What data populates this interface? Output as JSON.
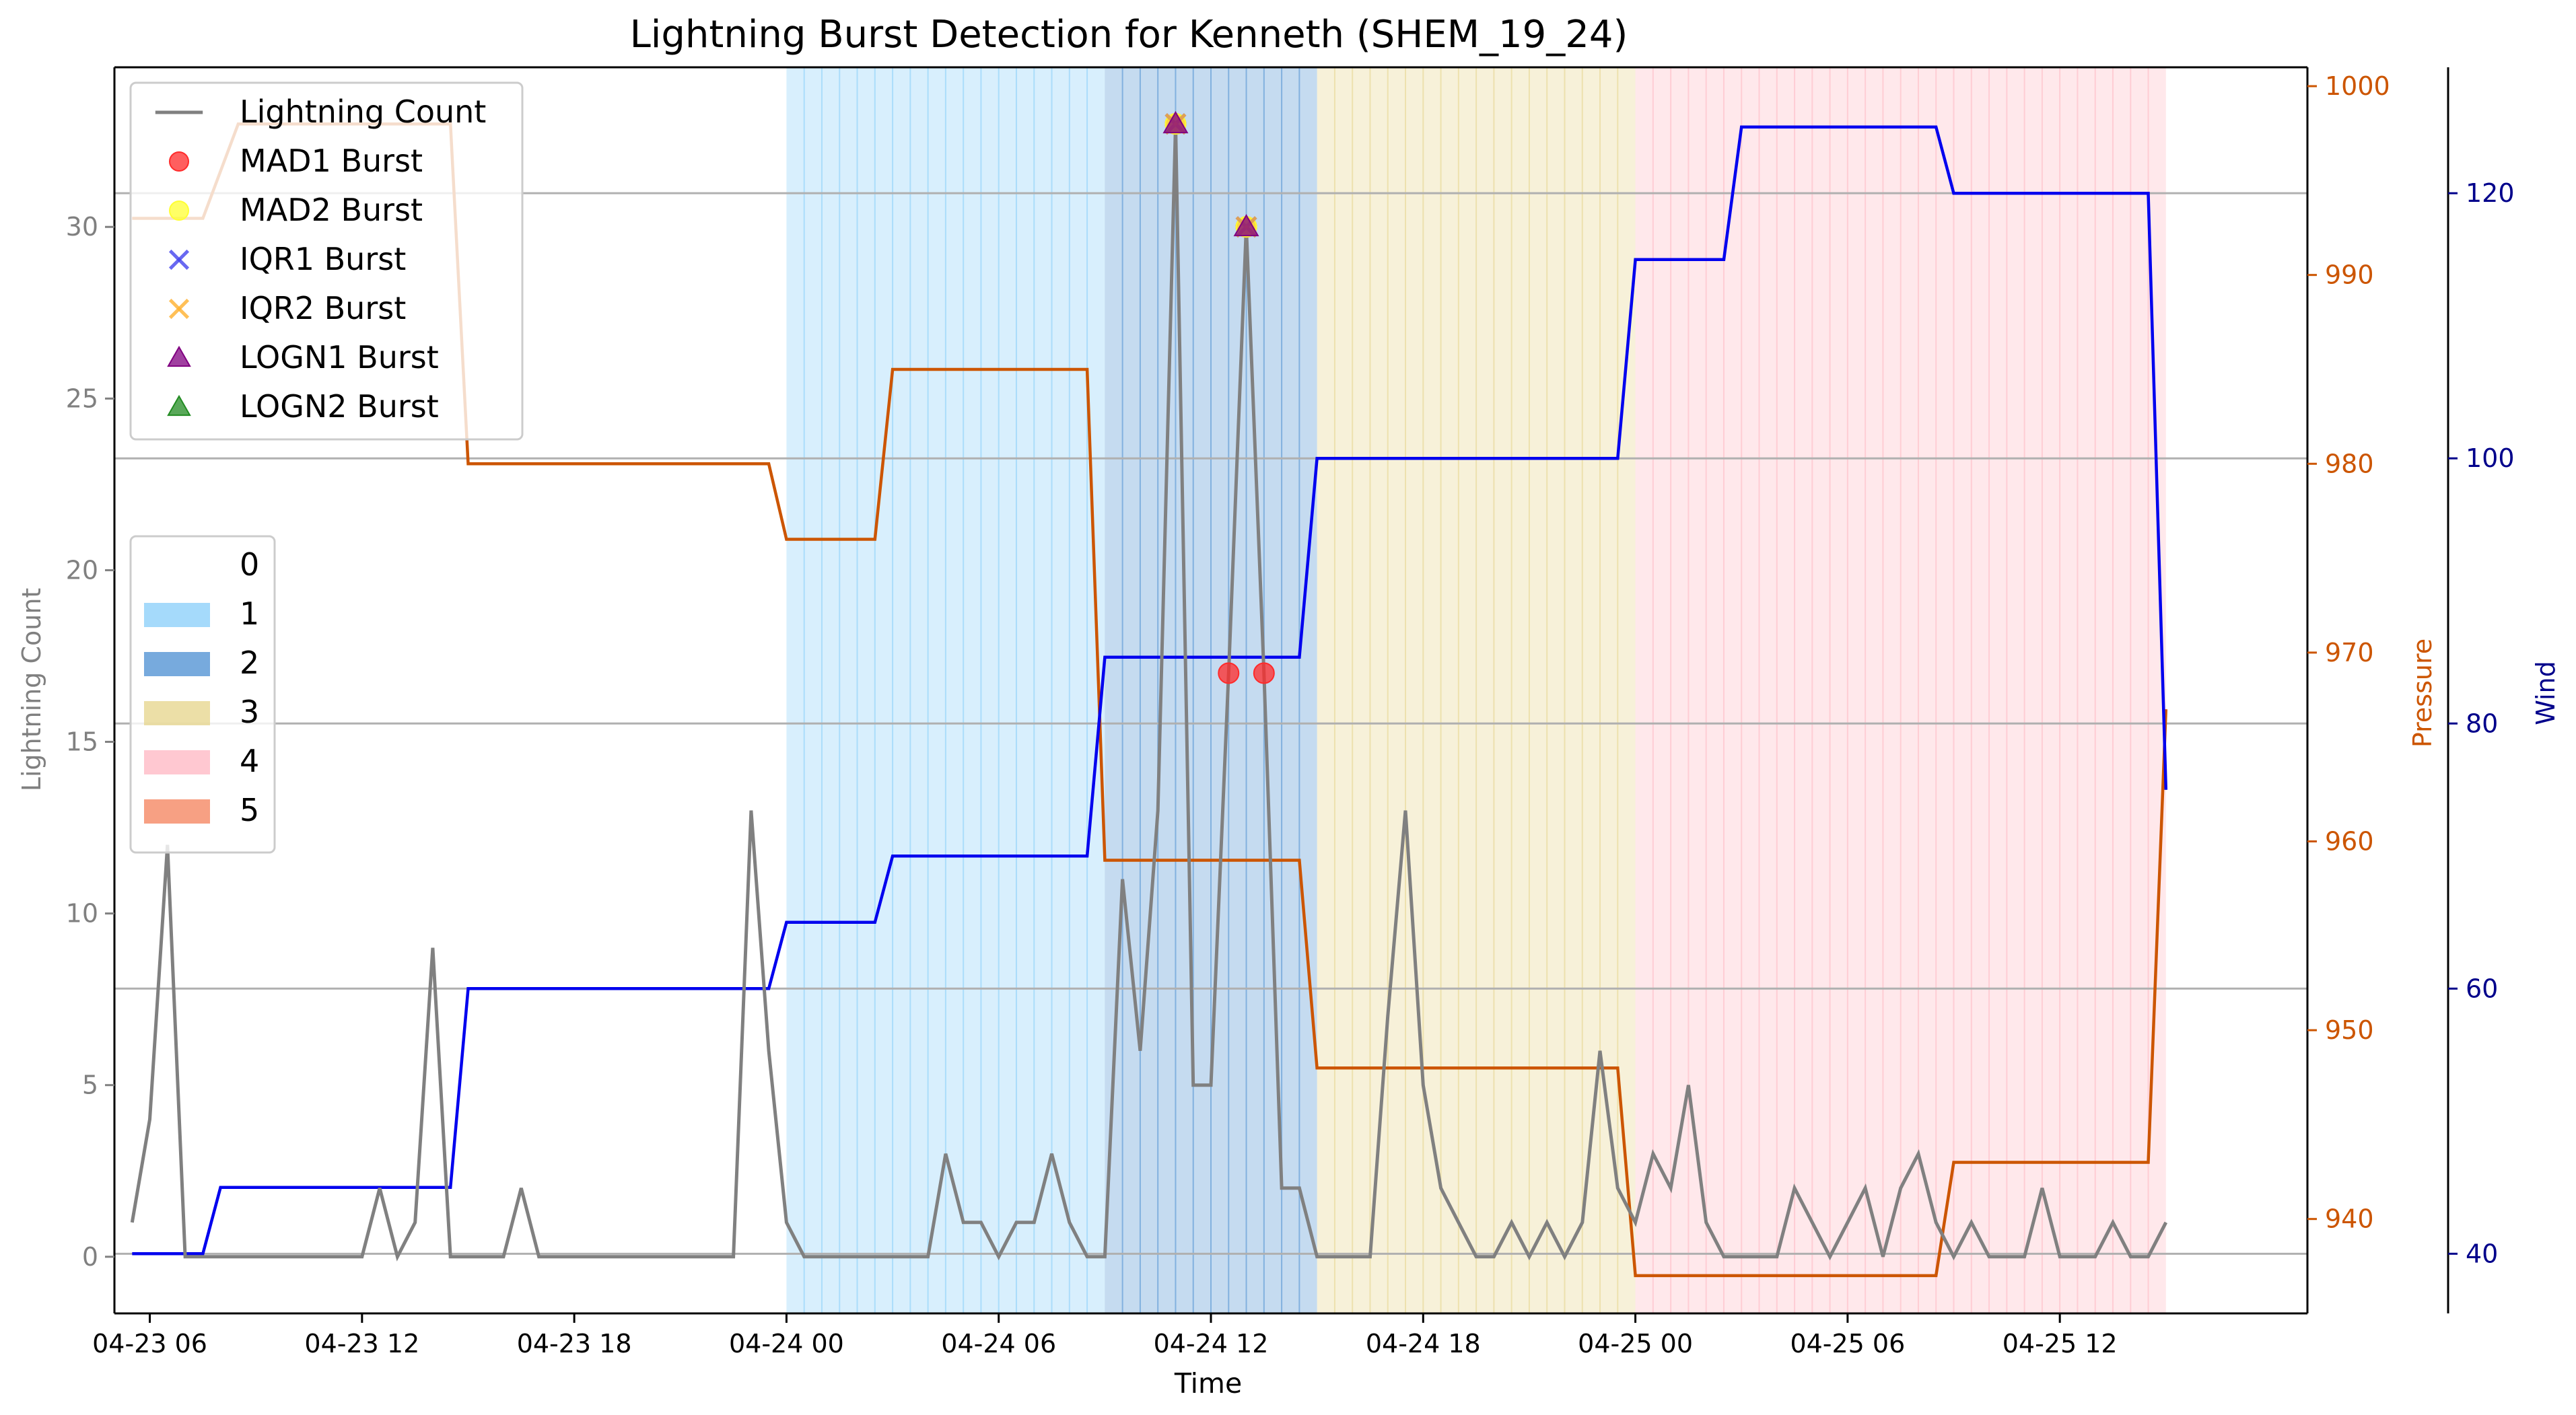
{
  "chart_data": {
    "type": "line",
    "title": "Lightning Burst Detection for Kenneth (SHEM_19_24)",
    "xlabel": "Time",
    "ylabel_left": "Lightning Count",
    "ylabel_right1": "Pressure",
    "ylabel_right2": "Wind",
    "x_range": [
      "2019-04-23 05:00",
      "2019-04-25 19:00"
    ],
    "x_tick_labels": [
      "04-23 06",
      "04-23 12",
      "04-23 18",
      "04-24 00",
      "04-24 06",
      "04-24 12",
      "04-24 18",
      "04-25 00",
      "04-25 06",
      "04-25 12"
    ],
    "y_left": {
      "range": [
        -1.65,
        34.65
      ],
      "ticks": [
        0,
        5,
        10,
        15,
        20,
        25,
        30
      ]
    },
    "y_pressure": {
      "range": [
        935,
        1001
      ],
      "ticks": [
        940,
        950,
        960,
        970,
        980,
        990,
        1000
      ]
    },
    "y_wind": {
      "range": [
        35.5,
        129.5
      ],
      "ticks": [
        40,
        60,
        80,
        100,
        120
      ]
    },
    "grid": "horizontal lines at wind ticks",
    "colors": {
      "lightning": "#808080",
      "pressure": "#cc5500",
      "wind": "#0000ee",
      "wind_axis": "#00008b",
      "cat1": "#87cefa",
      "cat2": "#4a8ed1",
      "cat3": "#e5d48a",
      "cat4": "#ffb6c1",
      "cat5": "#f4805a"
    },
    "category_bands": [
      {
        "category": 1,
        "start": "2019-04-24 00:00",
        "end": "2019-04-24 09:00"
      },
      {
        "category": 2,
        "start": "2019-04-24 09:00",
        "end": "2019-04-24 15:00"
      },
      {
        "category": 3,
        "start": "2019-04-24 15:00",
        "end": "2019-04-25 00:00"
      },
      {
        "category": 4,
        "start": "2019-04-25 00:00",
        "end": "2019-04-25 15:00"
      }
    ],
    "lightning_count": [
      [
        "2019-04-23 05:30",
        1
      ],
      [
        "2019-04-23 06:00",
        4
      ],
      [
        "2019-04-23 06:30",
        12
      ],
      [
        "2019-04-23 07:00",
        0
      ],
      [
        "2019-04-23 12:00",
        0
      ],
      [
        "2019-04-23 12:30",
        2
      ],
      [
        "2019-04-23 13:00",
        0
      ],
      [
        "2019-04-23 13:30",
        1
      ],
      [
        "2019-04-23 14:00",
        9
      ],
      [
        "2019-04-23 14:30",
        0
      ],
      [
        "2019-04-23 16:00",
        0
      ],
      [
        "2019-04-23 16:30",
        2
      ],
      [
        "2019-04-23 17:00",
        0
      ],
      [
        "2019-04-23 22:30",
        0
      ],
      [
        "2019-04-23 23:00",
        13
      ],
      [
        "2019-04-23 23:30",
        6
      ],
      [
        "2019-04-24 00:00",
        1
      ],
      [
        "2019-04-24 00:30",
        0
      ],
      [
        "2019-04-24 04:00",
        0
      ],
      [
        "2019-04-24 04:30",
        3
      ],
      [
        "2019-04-24 05:00",
        1
      ],
      [
        "2019-04-24 05:30",
        1
      ],
      [
        "2019-04-24 06:00",
        0
      ],
      [
        "2019-04-24 06:30",
        1
      ],
      [
        "2019-04-24 07:00",
        1
      ],
      [
        "2019-04-24 07:30",
        3
      ],
      [
        "2019-04-24 08:00",
        1
      ],
      [
        "2019-04-24 08:30",
        0
      ],
      [
        "2019-04-24 09:00",
        0
      ],
      [
        "2019-04-24 09:30",
        11
      ],
      [
        "2019-04-24 10:00",
        6
      ],
      [
        "2019-04-24 10:30",
        13
      ],
      [
        "2019-04-24 11:00",
        33
      ],
      [
        "2019-04-24 11:30",
        5
      ],
      [
        "2019-04-24 12:00",
        5
      ],
      [
        "2019-04-24 12:30",
        17
      ],
      [
        "2019-04-24 13:00",
        30
      ],
      [
        "2019-04-24 13:30",
        17
      ],
      [
        "2019-04-24 14:00",
        2
      ],
      [
        "2019-04-24 14:30",
        2
      ],
      [
        "2019-04-24 15:00",
        0
      ],
      [
        "2019-04-24 16:30",
        0
      ],
      [
        "2019-04-24 17:00",
        7
      ],
      [
        "2019-04-24 17:30",
        13
      ],
      [
        "2019-04-24 18:00",
        5
      ],
      [
        "2019-04-24 18:30",
        2
      ],
      [
        "2019-04-24 19:00",
        1
      ],
      [
        "2019-04-24 19:30",
        0
      ],
      [
        "2019-04-24 20:00",
        0
      ],
      [
        "2019-04-24 20:30",
        1
      ],
      [
        "2019-04-24 21:00",
        0
      ],
      [
        "2019-04-24 21:30",
        1
      ],
      [
        "2019-04-24 22:00",
        0
      ],
      [
        "2019-04-24 22:30",
        1
      ],
      [
        "2019-04-24 23:00",
        6
      ],
      [
        "2019-04-24 23:30",
        2
      ],
      [
        "2019-04-25 00:00",
        1
      ],
      [
        "2019-04-25 00:30",
        3
      ],
      [
        "2019-04-25 01:00",
        2
      ],
      [
        "2019-04-25 01:30",
        5
      ],
      [
        "2019-04-25 02:00",
        1
      ],
      [
        "2019-04-25 02:30",
        0
      ],
      [
        "2019-04-25 04:00",
        0
      ],
      [
        "2019-04-25 04:30",
        2
      ],
      [
        "2019-04-25 05:00",
        1
      ],
      [
        "2019-04-25 05:30",
        0
      ],
      [
        "2019-04-25 06:00",
        1
      ],
      [
        "2019-04-25 06:30",
        2
      ],
      [
        "2019-04-25 07:00",
        0
      ],
      [
        "2019-04-25 07:30",
        2
      ],
      [
        "2019-04-25 08:00",
        3
      ],
      [
        "2019-04-25 08:30",
        1
      ],
      [
        "2019-04-25 09:00",
        0
      ],
      [
        "2019-04-25 09:30",
        1
      ],
      [
        "2019-04-25 10:00",
        0
      ],
      [
        "2019-04-25 11:00",
        0
      ],
      [
        "2019-04-25 11:30",
        2
      ],
      [
        "2019-04-25 12:00",
        0
      ],
      [
        "2019-04-25 13:00",
        0
      ],
      [
        "2019-04-25 13:30",
        1
      ],
      [
        "2019-04-25 14:00",
        0
      ],
      [
        "2019-04-25 14:30",
        0
      ],
      [
        "2019-04-25 15:00",
        1
      ]
    ],
    "pressure": [
      [
        "2019-04-23 05:30",
        993
      ],
      [
        "2019-04-23 07:30",
        993
      ],
      [
        "2019-04-23 08:30",
        998
      ],
      [
        "2019-04-23 14:30",
        998
      ],
      [
        "2019-04-23 15:00",
        980
      ],
      [
        "2019-04-23 23:30",
        980
      ],
      [
        "2019-04-24 00:00",
        976
      ],
      [
        "2019-04-24 02:30",
        976
      ],
      [
        "2019-04-24 03:00",
        985
      ],
      [
        "2019-04-24 08:30",
        985
      ],
      [
        "2019-04-24 09:00",
        959
      ],
      [
        "2019-04-24 14:30",
        959
      ],
      [
        "2019-04-24 15:00",
        948
      ],
      [
        "2019-04-24 23:30",
        948
      ],
      [
        "2019-04-25 00:00",
        937
      ],
      [
        "2019-04-25 08:30",
        937
      ],
      [
        "2019-04-25 09:00",
        943
      ],
      [
        "2019-04-25 14:30",
        943
      ],
      [
        "2019-04-25 15:00",
        967
      ]
    ],
    "wind": [
      [
        "2019-04-23 05:30",
        40
      ],
      [
        "2019-04-23 07:30",
        40
      ],
      [
        "2019-04-23 08:00",
        45
      ],
      [
        "2019-04-23 14:30",
        45
      ],
      [
        "2019-04-23 15:00",
        60
      ],
      [
        "2019-04-23 23:30",
        60
      ],
      [
        "2019-04-24 00:00",
        65
      ],
      [
        "2019-04-24 02:30",
        65
      ],
      [
        "2019-04-24 03:00",
        70
      ],
      [
        "2019-04-24 08:30",
        70
      ],
      [
        "2019-04-24 09:00",
        85
      ],
      [
        "2019-04-24 14:30",
        85
      ],
      [
        "2019-04-24 15:00",
        100
      ],
      [
        "2019-04-24 23:30",
        100
      ],
      [
        "2019-04-25 00:00",
        115
      ],
      [
        "2019-04-25 02:30",
        115
      ],
      [
        "2019-04-25 03:00",
        125
      ],
      [
        "2019-04-25 08:30",
        125
      ],
      [
        "2019-04-25 09:00",
        120
      ],
      [
        "2019-04-25 14:30",
        120
      ],
      [
        "2019-04-25 15:00",
        75
      ]
    ],
    "bursts": [
      {
        "method": "MAD1 Burst",
        "points": [
          [
            "2019-04-24 11:00",
            33
          ],
          [
            "2019-04-24 12:30",
            17
          ],
          [
            "2019-04-24 13:00",
            30
          ],
          [
            "2019-04-24 13:30",
            17
          ]
        ]
      },
      {
        "method": "MAD2 Burst",
        "points": [
          [
            "2019-04-24 11:00",
            33
          ],
          [
            "2019-04-24 13:00",
            30
          ]
        ]
      },
      {
        "method": "IQR1 Burst",
        "points": [
          [
            "2019-04-24 11:00",
            33
          ],
          [
            "2019-04-24 13:00",
            30
          ]
        ]
      },
      {
        "method": "IQR2 Burst",
        "points": [
          [
            "2019-04-24 11:00",
            33
          ],
          [
            "2019-04-24 13:00",
            30
          ]
        ]
      },
      {
        "method": "LOGN1 Burst",
        "points": [
          [
            "2019-04-24 11:00",
            33
          ],
          [
            "2019-04-24 13:00",
            30
          ]
        ]
      },
      {
        "method": "LOGN2 Burst",
        "points": []
      }
    ],
    "legend_series": [
      {
        "label": "Lightning Count",
        "marker": "line",
        "color": "#808080"
      },
      {
        "label": "MAD1 Burst",
        "marker": "circle",
        "color": "#ff2a2a"
      },
      {
        "label": "MAD2 Burst",
        "marker": "circle",
        "color": "#ffff33"
      },
      {
        "label": "IQR1 Burst",
        "marker": "x",
        "color": "#4444ee"
      },
      {
        "label": "IQR2 Burst",
        "marker": "x",
        "color": "#ffb02e"
      },
      {
        "label": "LOGN1 Burst",
        "marker": "triangle",
        "color": "#800080"
      },
      {
        "label": "LOGN2 Burst",
        "marker": "triangle",
        "color": "#228b22"
      }
    ],
    "legend_series_placement": "top-left",
    "legend_categories": [
      {
        "label": "0",
        "color": "#ffffff"
      },
      {
        "label": "1",
        "color": "#87cefa"
      },
      {
        "label": "2",
        "color": "#4a8ed1"
      },
      {
        "label": "3",
        "color": "#e5d48a"
      },
      {
        "label": "4",
        "color": "#ffb6c1"
      },
      {
        "label": "5",
        "color": "#f4805a"
      }
    ],
    "legend_categories_placement": "middle-left"
  }
}
